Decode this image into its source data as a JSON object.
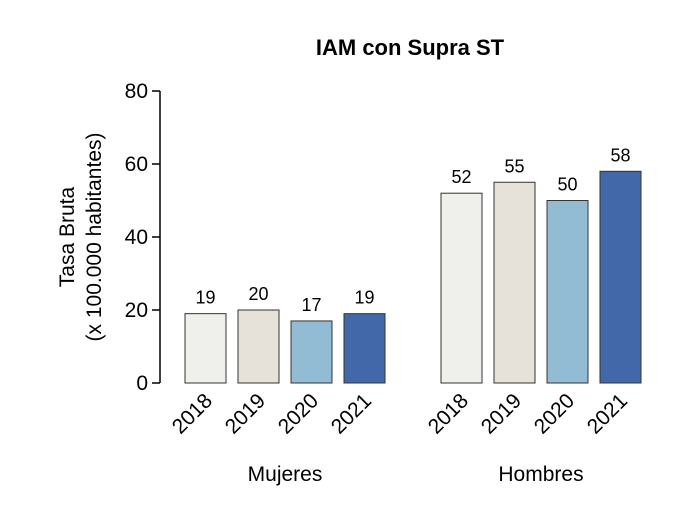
{
  "chart_data": {
    "type": "bar",
    "title": "IAM con Supra ST",
    "ylabel_line1": "Tasa Bruta",
    "ylabel_line2": "(x 100.000 habitantes)",
    "ylim": [
      0,
      80
    ],
    "yticks": [
      0,
      20,
      40,
      60,
      80
    ],
    "grid": false,
    "groups": [
      {
        "name": "Mujeres",
        "categories": [
          "2018",
          "2019",
          "2020",
          "2021"
        ],
        "values": [
          19,
          20,
          17,
          19
        ]
      },
      {
        "name": "Hombres",
        "categories": [
          "2018",
          "2019",
          "2020",
          "2021"
        ],
        "values": [
          52,
          55,
          50,
          58
        ]
      }
    ],
    "colors": {
      "2018": "#efefec",
      "2019": "#e6e2da",
      "2020": "#92bcd3",
      "2021": "#4268aa"
    }
  }
}
